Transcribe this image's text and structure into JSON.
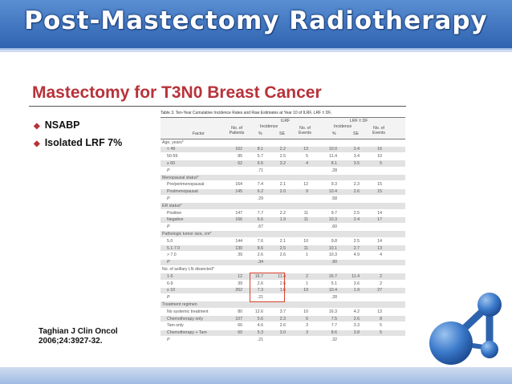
{
  "banner": {
    "title": "Post-Mastectomy Radiotherapy"
  },
  "slide": {
    "title": "Mastectomy for T3N0 Breast Cancer",
    "bullets": [
      "NSABP",
      "Isolated LRF 7%"
    ],
    "citation_line1": "Taghian J Clin Oncol",
    "citation_line2": "2006;24:3927-32."
  },
  "table": {
    "caption": "Table 3. Ten-Year Cumulative Incidence Rates and Raw Estimates at Year 10 of ILRF, LRF ± DF,",
    "headers": {
      "group1": "ILRF",
      "group2": "LRF ± DF",
      "incidence1": "Incidence",
      "incidence2": "Incidence",
      "factor": "Factor",
      "patients": "No. of Patients",
      "pct1": "%",
      "se1": "SE",
      "events1": "No. of Events",
      "pct2": "%",
      "se2": "SE",
      "events2": "No. of Events"
    },
    "rows": [
      {
        "label": "Age, years*",
        "type": "section",
        "cells": []
      },
      {
        "label": "< 49",
        "type": "data",
        "cells": [
          "162",
          "8.1",
          "2.2",
          "13",
          "10.0",
          "2.4",
          "16"
        ]
      },
      {
        "label": "50-59",
        "type": "data",
        "cells": [
          "85",
          "5.7",
          "2.5",
          "5",
          "11.4",
          "3.4",
          "10"
        ]
      },
      {
        "label": "≥ 60",
        "type": "data",
        "cells": [
          "62",
          "6.5",
          "3.2",
          "4",
          "8.1",
          "3.5",
          "5"
        ]
      },
      {
        "label": "P",
        "type": "p",
        "cells": [
          "",
          ".71",
          "",
          "",
          ".28",
          "",
          ""
        ]
      },
      {
        "label": "Menopausal status*",
        "type": "section",
        "cells": []
      },
      {
        "label": "Pre/perimenopausal",
        "type": "data",
        "cells": [
          "164",
          "7.4",
          "2.1",
          "12",
          "9.3",
          "2.3",
          "15"
        ]
      },
      {
        "label": "Postmenopausal",
        "type": "data",
        "cells": [
          "145",
          "6.2",
          "2.0",
          "9",
          "10.4",
          "2.6",
          "15"
        ]
      },
      {
        "label": "P",
        "type": "p",
        "cells": [
          "",
          ".29",
          "",
          "",
          ".58",
          "",
          ""
        ]
      },
      {
        "label": "ER status*",
        "type": "section",
        "cells": []
      },
      {
        "label": "Positive",
        "type": "data",
        "cells": [
          "147",
          "7.7",
          "2.2",
          "11",
          "9.7",
          "2.5",
          "14"
        ]
      },
      {
        "label": "Negative",
        "type": "data",
        "cells": [
          "166",
          "6.6",
          "1.9",
          "11",
          "10.3",
          "2.4",
          "17"
        ]
      },
      {
        "label": "P",
        "type": "p",
        "cells": [
          "",
          ".67",
          "",
          "",
          ".60",
          "",
          ""
        ]
      },
      {
        "label": "Pathologic tumor size, cm*",
        "type": "section",
        "cells": []
      },
      {
        "label": "5.0",
        "type": "data",
        "cells": [
          "144",
          "7.6",
          "2.1",
          "10",
          "9.8",
          "2.5",
          "14"
        ]
      },
      {
        "label": "5.1-7.0",
        "type": "data",
        "cells": [
          "130",
          "8.6",
          "2.5",
          "11",
          "10.1",
          "2.7",
          "13"
        ]
      },
      {
        "label": "> 7.0",
        "type": "data",
        "cells": [
          "39",
          "2.6",
          "2.6",
          "1",
          "10.3",
          "4.9",
          "4"
        ]
      },
      {
        "label": "P",
        "type": "p",
        "cells": [
          "",
          ".34",
          "",
          "",
          ".90",
          "",
          ""
        ]
      },
      {
        "label": "No. of axillary LN dissected*",
        "type": "section",
        "cells": []
      },
      {
        "label": "1-5",
        "type": "data",
        "cells": [
          "12",
          "16.7",
          "11.4",
          "2",
          "16.7",
          "11.4",
          "2"
        ]
      },
      {
        "label": "6-9",
        "type": "data",
        "cells": [
          "39",
          "2.6",
          "2.6",
          "1",
          "5.1",
          "3.6",
          "2"
        ]
      },
      {
        "label": "≥ 10",
        "type": "data",
        "cells": [
          "262",
          "7.3",
          "1.6",
          "19",
          "10.4",
          "1.9",
          "27"
        ]
      },
      {
        "label": "P",
        "type": "p",
        "cells": [
          "",
          ".21",
          "",
          "",
          ".28",
          "",
          ""
        ]
      },
      {
        "label": "Treatment regimen",
        "type": "section",
        "cells": []
      },
      {
        "label": "No systemic treatment",
        "type": "data",
        "cells": [
          "80",
          "12.6",
          "3.7",
          "10",
          "16.3",
          "4.2",
          "13"
        ]
      },
      {
        "label": "Chemotherapy only",
        "type": "data",
        "cells": [
          "107",
          "5.6",
          "2.3",
          "6",
          "7.5",
          "2.6",
          "8"
        ]
      },
      {
        "label": "Tam only",
        "type": "data",
        "cells": [
          "66",
          "4.6",
          "2.6",
          "3",
          "7.7",
          "3.3",
          "5"
        ]
      },
      {
        "label": "Chemotherapy + Tam",
        "type": "data",
        "cells": [
          "60",
          "5.3",
          "3.0",
          "3",
          "8.6",
          "3.8",
          "5"
        ]
      },
      {
        "label": "P",
        "type": "p",
        "cells": [
          "",
          ".21",
          "",
          "",
          ".32",
          "",
          ""
        ]
      }
    ]
  },
  "logo": {
    "icon": "molecule-logo-icon",
    "color": "#3a78c9"
  },
  "colors": {
    "banner": "#3a72c0",
    "title_red": "#b8323a",
    "highlight_box": "#d9412e"
  }
}
